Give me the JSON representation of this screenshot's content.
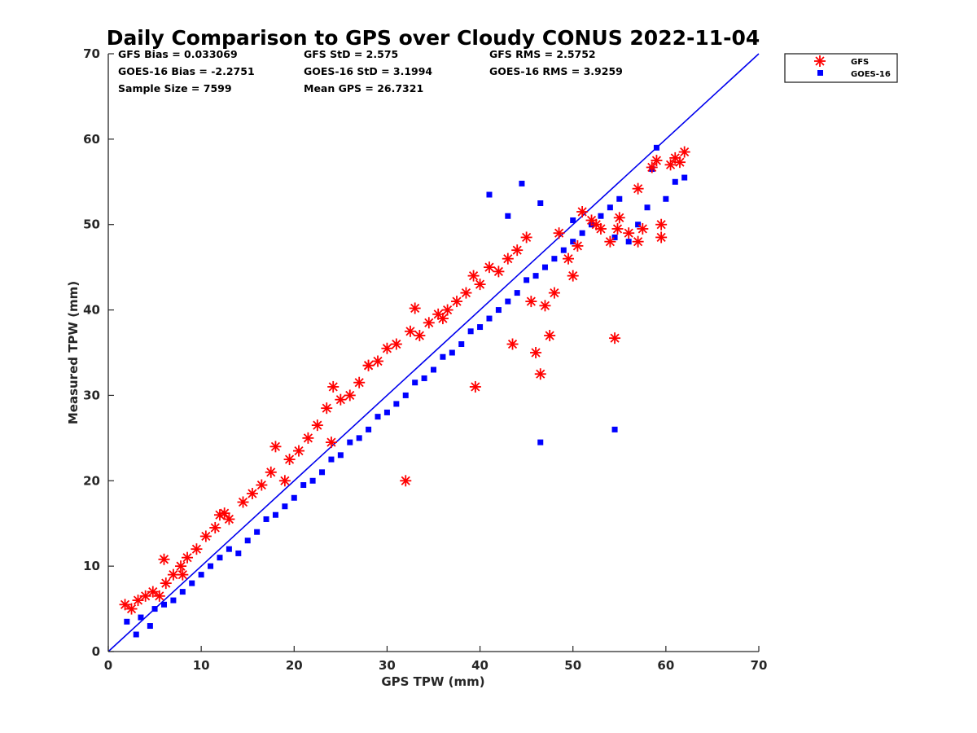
{
  "chart_data": {
    "type": "scatter",
    "title": "Daily Comparison to GPS over Cloudy CONUS 2022-11-04",
    "xlabel": "GPS TPW (mm)",
    "ylabel": "Measured TPW (mm)",
    "xlim": [
      0,
      70
    ],
    "ylim": [
      0,
      70
    ],
    "xticks": [
      0,
      10,
      20,
      30,
      40,
      50,
      60,
      70
    ],
    "yticks": [
      0,
      10,
      20,
      30,
      40,
      50,
      60,
      70
    ],
    "grid": false,
    "legend_position": "outside-top-right",
    "stats": [
      [
        "GFS Bias = 0.033069",
        "GFS StD = 2.575",
        "GFS RMS = 2.5752"
      ],
      [
        "GOES-16 Bias = -2.2751",
        "GOES-16 StD = 3.1994",
        "GOES-16 RMS = 3.9259"
      ],
      [
        "Sample Size = 7599",
        "Mean GPS = 26.7321",
        ""
      ]
    ],
    "reference_line": {
      "x": [
        0,
        70
      ],
      "y": [
        0,
        70
      ],
      "color": "#0000ee"
    },
    "series": [
      {
        "name": "GFS",
        "marker": "asterisk",
        "color": "#ff0000",
        "x": [
          1.8,
          2.5,
          3.2,
          4.0,
          4.8,
          5.5,
          6.2,
          7.0,
          7.8,
          8.5,
          9.5,
          10.5,
          11.5,
          12.0,
          13.0,
          14.5,
          15.5,
          16.5,
          17.5,
          18.0,
          19.5,
          20.5,
          21.5,
          22.5,
          23.5,
          24.2,
          25.0,
          26.0,
          27.0,
          28.0,
          29.0,
          30.0,
          31.0,
          32.0,
          32.5,
          33.5,
          34.5,
          35.5,
          36.5,
          37.5,
          38.5,
          39.3,
          40.0,
          41.0,
          42.0,
          43.0,
          44.0,
          45.0,
          46.0,
          46.5,
          47.5,
          48.5,
          49.5,
          50.5,
          51.0,
          52.0,
          53.0,
          54.0,
          54.5,
          55.0,
          56.0,
          57.0,
          57.5,
          58.5,
          59.0,
          59.5,
          60.5,
          61.0,
          62.0,
          6.0,
          8.0,
          12.5,
          19.0,
          24.0,
          28.0,
          33.0,
          36.0,
          39.5,
          43.5,
          45.5,
          47.0,
          48.0,
          50.0,
          52.5,
          54.8,
          57.0,
          59.5,
          61.5
        ],
        "y": [
          5.5,
          5.0,
          6.0,
          6.5,
          7.0,
          6.5,
          8.0,
          9.0,
          10.0,
          11.0,
          12.0,
          13.5,
          14.5,
          16.0,
          15.5,
          17.5,
          18.5,
          19.5,
          21.0,
          24.0,
          22.5,
          23.5,
          25.0,
          26.5,
          28.5,
          31.0,
          29.5,
          30.0,
          31.5,
          33.5,
          34.0,
          35.5,
          36.0,
          20.0,
          37.5,
          37.0,
          38.5,
          39.5,
          40.0,
          41.0,
          42.0,
          44.0,
          43.0,
          45.0,
          44.5,
          46.0,
          47.0,
          48.5,
          35.0,
          32.5,
          37.0,
          49.0,
          46.0,
          47.5,
          51.5,
          50.5,
          49.5,
          48.0,
          36.7,
          50.8,
          49.0,
          54.2,
          49.5,
          56.7,
          57.5,
          48.5,
          57.0,
          57.8,
          58.5,
          10.8,
          9.0,
          16.2,
          20.0,
          24.5,
          33.5,
          40.2,
          39.0,
          31.0,
          36.0,
          41.0,
          40.5,
          42.0,
          44.0,
          50.0,
          49.5,
          48.0,
          50.0,
          57.3
        ]
      },
      {
        "name": "GOES-16",
        "marker": "square",
        "color": "#0000ff",
        "x": [
          2.0,
          3.0,
          3.5,
          4.5,
          5.0,
          6.0,
          7.0,
          8.0,
          9.0,
          10.0,
          11.0,
          12.0,
          13.0,
          14.0,
          15.0,
          16.0,
          17.0,
          18.0,
          19.0,
          20.0,
          21.0,
          22.0,
          23.0,
          24.0,
          25.0,
          26.0,
          27.0,
          28.0,
          29.0,
          30.0,
          31.0,
          32.0,
          33.0,
          34.0,
          35.0,
          36.0,
          37.0,
          38.0,
          39.0,
          40.0,
          41.0,
          42.0,
          43.0,
          44.0,
          45.0,
          46.0,
          46.5,
          47.0,
          48.0,
          49.0,
          50.0,
          51.0,
          52.0,
          53.0,
          54.0,
          54.5,
          55.0,
          56.0,
          57.0,
          58.0,
          58.5,
          59.0,
          60.0,
          61.0,
          62.0,
          41.0,
          43.0,
          44.5,
          46.5,
          50.0,
          54.5
        ],
        "y": [
          3.5,
          2.0,
          4.0,
          3.0,
          5.0,
          5.5,
          6.0,
          7.0,
          8.0,
          9.0,
          10.0,
          11.0,
          12.0,
          11.5,
          13.0,
          14.0,
          15.5,
          16.0,
          17.0,
          18.0,
          19.5,
          20.0,
          21.0,
          22.5,
          23.0,
          24.5,
          25.0,
          26.0,
          27.5,
          28.0,
          29.0,
          30.0,
          31.5,
          32.0,
          33.0,
          34.5,
          35.0,
          36.0,
          37.5,
          38.0,
          39.0,
          40.0,
          41.0,
          42.0,
          43.5,
          44.0,
          24.5,
          45.0,
          46.0,
          47.0,
          48.0,
          49.0,
          50.0,
          51.0,
          52.0,
          26.0,
          53.0,
          48.0,
          50.0,
          52.0,
          56.5,
          59.0,
          53.0,
          55.0,
          55.5,
          53.5,
          51.0,
          54.8,
          52.5,
          50.5,
          48.5
        ]
      }
    ]
  }
}
